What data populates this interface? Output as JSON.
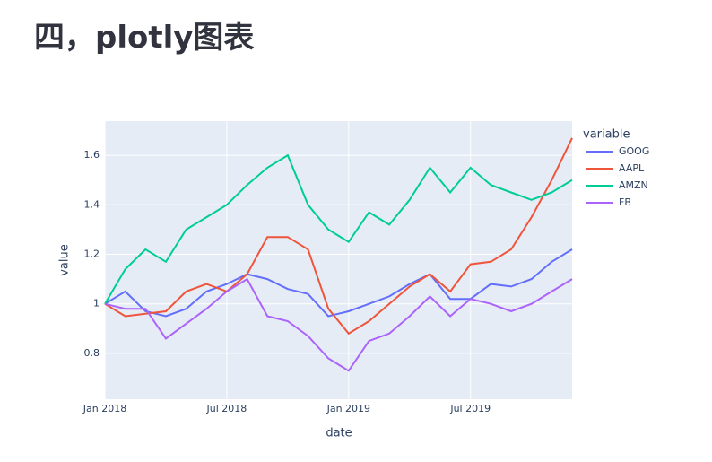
{
  "page_title": "四，plotly图表",
  "chart_data": {
    "type": "line",
    "x_label": "date",
    "y_label": "value",
    "legend_title": "variable",
    "x": [
      "2018-01",
      "2018-02",
      "2018-03",
      "2018-04",
      "2018-05",
      "2018-06",
      "2018-07",
      "2018-08",
      "2018-09",
      "2018-10",
      "2018-11",
      "2018-12",
      "2019-01",
      "2019-02",
      "2019-03",
      "2019-04",
      "2019-05",
      "2019-06",
      "2019-07",
      "2019-08",
      "2019-09",
      "2019-10",
      "2019-11",
      "2019-12"
    ],
    "series": [
      {
        "name": "GOOG",
        "color": "#636efa",
        "values": [
          1.0,
          1.05,
          0.97,
          0.95,
          0.98,
          1.05,
          1.08,
          1.12,
          1.1,
          1.06,
          1.04,
          0.95,
          0.97,
          1.0,
          1.03,
          1.08,
          1.12,
          1.02,
          1.02,
          1.08,
          1.07,
          1.1,
          1.17,
          1.22
        ]
      },
      {
        "name": "AAPL",
        "color": "#ef553b",
        "values": [
          1.0,
          0.95,
          0.96,
          0.97,
          1.05,
          1.08,
          1.05,
          1.12,
          1.27,
          1.27,
          1.22,
          0.98,
          0.88,
          0.93,
          1.0,
          1.07,
          1.12,
          1.05,
          1.16,
          1.17,
          1.22,
          1.35,
          1.5,
          1.67
        ]
      },
      {
        "name": "AMZN",
        "color": "#00cc96",
        "values": [
          1.0,
          1.14,
          1.22,
          1.17,
          1.3,
          1.35,
          1.4,
          1.48,
          1.55,
          1.6,
          1.4,
          1.3,
          1.25,
          1.37,
          1.32,
          1.42,
          1.55,
          1.45,
          1.55,
          1.48,
          1.45,
          1.42,
          1.45,
          1.5
        ]
      },
      {
        "name": "FB",
        "color": "#ab63fa",
        "values": [
          1.0,
          0.98,
          0.98,
          0.86,
          0.92,
          0.98,
          1.05,
          1.1,
          0.95,
          0.93,
          0.87,
          0.78,
          0.73,
          0.85,
          0.88,
          0.95,
          1.03,
          0.95,
          1.02,
          1.0,
          0.97,
          1.0,
          1.05,
          1.1
        ]
      }
    ],
    "xlim": [
      "2018-01",
      "2019-12"
    ],
    "xticks": [
      {
        "value": "2018-01",
        "label": "Jan 2018"
      },
      {
        "value": "2018-07",
        "label": "Jul 2018"
      },
      {
        "value": "2019-01",
        "label": "Jan 2019"
      },
      {
        "value": "2019-07",
        "label": "Jul 2019"
      }
    ],
    "ylim": [
      0.615,
      1.738
    ],
    "yticks": [
      0.8,
      1,
      1.2,
      1.4,
      1.6
    ],
    "grid": true,
    "legend": "right"
  }
}
